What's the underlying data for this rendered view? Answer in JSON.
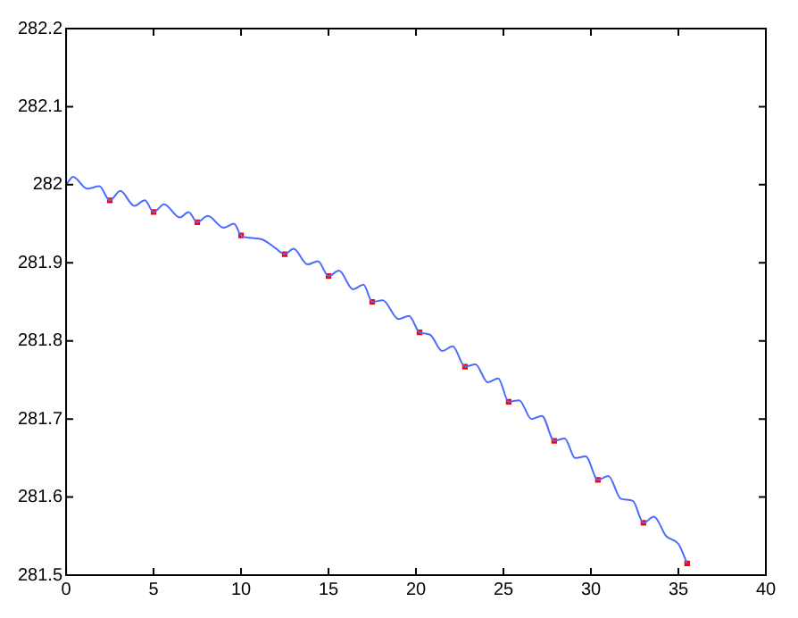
{
  "chart_data": {
    "type": "line",
    "xlim": [
      0,
      40
    ],
    "ylim": [
      281.5,
      282.2
    ],
    "xticks": [
      0,
      5,
      10,
      15,
      20,
      25,
      30,
      35,
      40
    ],
    "yticks": [
      281.5,
      281.6,
      281.7,
      281.8,
      281.9,
      282,
      282.1,
      282.2
    ],
    "grid": false,
    "legend": false,
    "series": [
      {
        "color": "#4d6bff",
        "marker": "none",
        "x": [
          0,
          0.4,
          1.2,
          1.9,
          2.5,
          3.1,
          3.9,
          4.5,
          5,
          5.6,
          6.5,
          7,
          7.5,
          8.1,
          9,
          9.6,
          10,
          10.5,
          11.2,
          11.9,
          12.5,
          13,
          13.8,
          14.4,
          15,
          15.6,
          16.4,
          17,
          17.5,
          18.1,
          19,
          19.6,
          20.2,
          20.8,
          21.5,
          22.1,
          22.8,
          23.4,
          24.1,
          24.7,
          25.3,
          25.9,
          26.6,
          27.2,
          27.9,
          28.5,
          29.1,
          29.7,
          30.4,
          31,
          31.7,
          32.4,
          33,
          33.6,
          34.3,
          35,
          35.5
        ],
        "values": [
          282.0,
          282.01,
          281.995,
          281.998,
          281.98,
          281.992,
          281.973,
          281.98,
          281.965,
          281.975,
          281.958,
          281.965,
          281.952,
          281.96,
          281.945,
          281.95,
          281.935,
          281.932,
          281.93,
          281.92,
          281.911,
          281.918,
          281.898,
          281.902,
          281.883,
          281.89,
          281.866,
          281.872,
          281.85,
          281.852,
          281.828,
          281.832,
          281.811,
          281.808,
          281.787,
          281.793,
          281.767,
          281.77,
          281.747,
          281.752,
          281.722,
          281.724,
          281.7,
          281.704,
          281.672,
          281.675,
          281.65,
          281.652,
          281.622,
          281.627,
          281.598,
          281.595,
          281.567,
          281.575,
          281.55,
          281.54,
          281.515
        ]
      },
      {
        "type": "scatter",
        "color": "#ff0000",
        "marker": "square",
        "x": [
          2.5,
          5,
          7.5,
          10,
          12.5,
          15,
          17.5,
          20.2,
          22.8,
          25.3,
          27.9,
          30.4,
          33,
          35.5
        ],
        "values": [
          281.98,
          281.965,
          281.952,
          281.935,
          281.911,
          281.883,
          281.85,
          281.811,
          281.767,
          281.722,
          281.672,
          281.622,
          281.567,
          281.515
        ]
      }
    ]
  }
}
